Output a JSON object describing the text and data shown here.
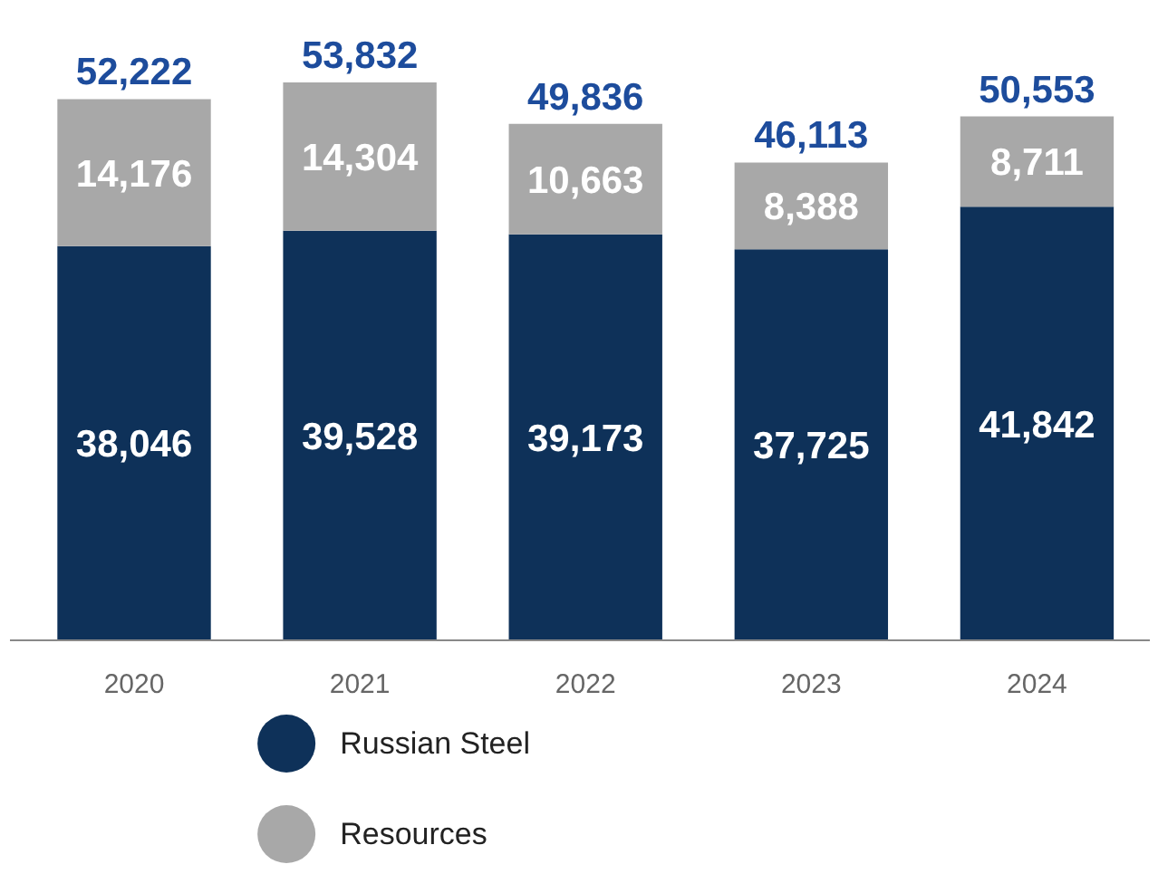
{
  "chart_data": {
    "type": "bar",
    "stacked": true,
    "categories": [
      "2020",
      "2021",
      "2022",
      "2023",
      "2024"
    ],
    "series": [
      {
        "name": "Russian Steel",
        "color": "#0e3159",
        "values": [
          38046,
          39528,
          39173,
          37725,
          41842
        ],
        "value_labels": [
          "38,046",
          "39,528",
          "39,173",
          "37,725",
          "41,842"
        ]
      },
      {
        "name": "Resources",
        "color": "#a8a8a8",
        "values": [
          14176,
          14304,
          10663,
          8388,
          8711
        ],
        "value_labels": [
          "14,176",
          "14,304",
          "10,663",
          "8,388",
          "8,711"
        ]
      }
    ],
    "totals": [
      "52,222",
      "53,832",
      "49,836",
      "46,113",
      "50,553"
    ],
    "legend": "bottom",
    "grid": false
  }
}
